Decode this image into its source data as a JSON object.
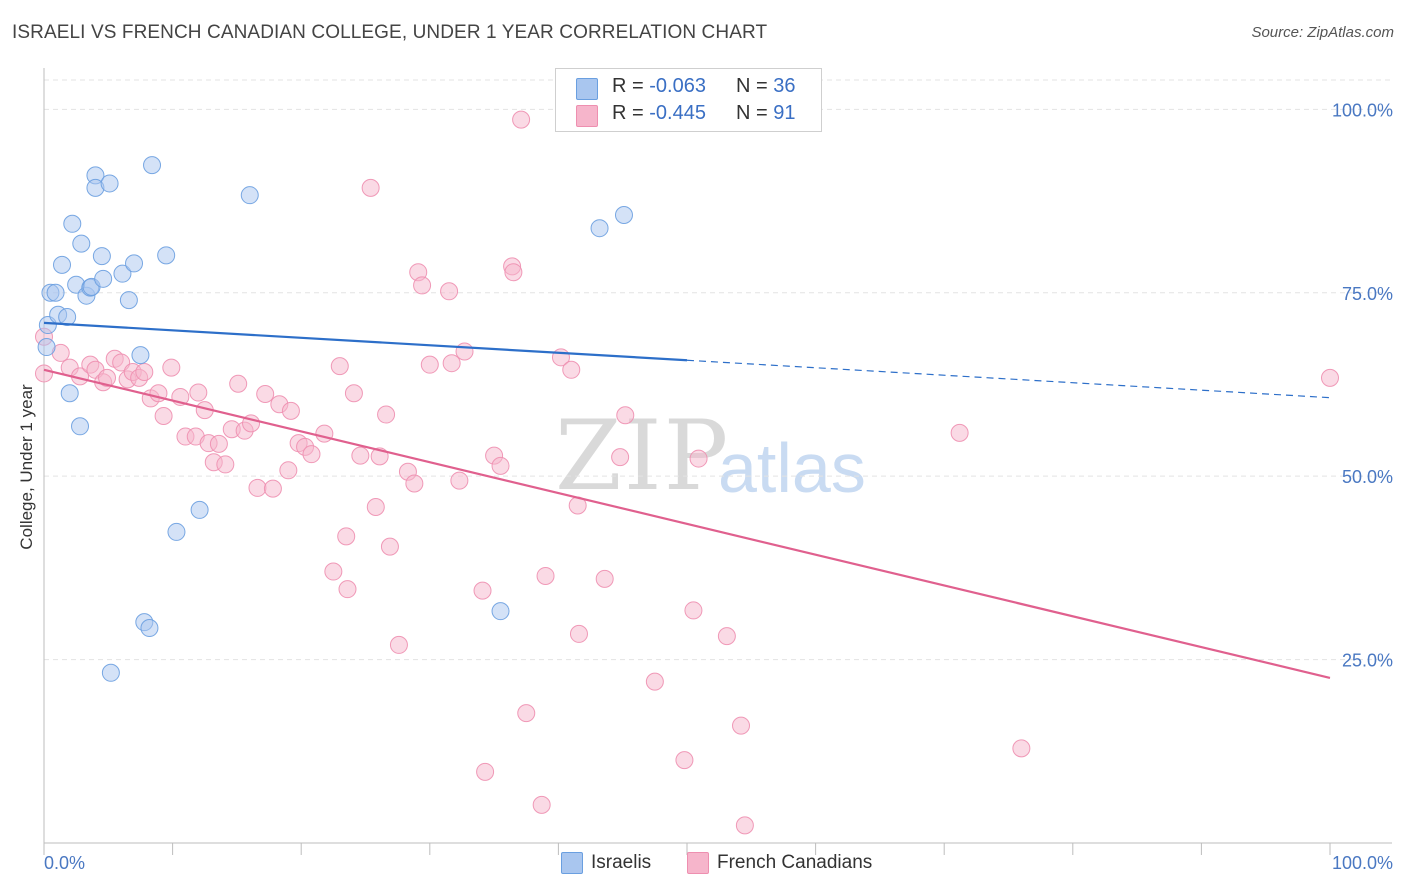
{
  "title": "ISRAELI VS FRENCH CANADIAN COLLEGE, UNDER 1 YEAR CORRELATION CHART",
  "source": "Source: ZipAtlas.com",
  "watermark": {
    "zip": "ZIP",
    "atlas": "atlas"
  },
  "legend": {
    "r_label": "R =",
    "n_label": "N =",
    "rows": [
      {
        "r": "-0.063",
        "n": "36",
        "color": "#a9c6ef"
      },
      {
        "r": "-0.445",
        "n": "91",
        "color": "#f6b5cb"
      }
    ]
  },
  "bottom_legend": {
    "israelis": "Israelis",
    "french_canadians": "French Canadians"
  },
  "chart_data": {
    "type": "scatter",
    "title": "ISRAELI VS FRENCH CANADIAN COLLEGE, UNDER 1 YEAR CORRELATION CHART",
    "xlabel": "",
    "ylabel": "College, Under 1 year",
    "xlim": [
      0,
      100
    ],
    "ylim": [
      0,
      104
    ],
    "x_tick_labels": [
      "0.0%",
      "100.0%"
    ],
    "y_ticks": [
      25,
      50,
      75,
      100
    ],
    "y_tick_labels": [
      "25.0%",
      "50.0%",
      "75.0%",
      "100.0%"
    ],
    "grid": true,
    "series": [
      {
        "name": "Israelis",
        "color": "#6a9fe0",
        "fill": "#a9c6ef",
        "trend": {
          "x0": 0,
          "y0": 70.9,
          "x1": 50,
          "y1": 65.8,
          "dash_to_x": 100,
          "dash_to_y": 60.7,
          "color": "#2d6fc9"
        },
        "points": [
          [
            0.2,
            67.6
          ],
          [
            0.3,
            70.6
          ],
          [
            0.5,
            75.0
          ],
          [
            0.9,
            75.0
          ],
          [
            1.1,
            72.0
          ],
          [
            1.4,
            78.8
          ],
          [
            1.8,
            71.7
          ],
          [
            2.0,
            61.3
          ],
          [
            2.2,
            84.4
          ],
          [
            2.5,
            76.1
          ],
          [
            2.8,
            56.8
          ],
          [
            2.9,
            81.7
          ],
          [
            3.3,
            74.6
          ],
          [
            3.6,
            75.7
          ],
          [
            3.7,
            75.8
          ],
          [
            4.0,
            91.0
          ],
          [
            4.0,
            89.3
          ],
          [
            4.5,
            80.0
          ],
          [
            4.6,
            76.9
          ],
          [
            5.1,
            89.9
          ],
          [
            5.2,
            23.2
          ],
          [
            6.1,
            77.6
          ],
          [
            6.6,
            74.0
          ],
          [
            7.0,
            79.0
          ],
          [
            7.5,
            66.5
          ],
          [
            7.8,
            30.1
          ],
          [
            8.2,
            29.3
          ],
          [
            8.4,
            92.4
          ],
          [
            9.5,
            80.1
          ],
          [
            10.3,
            42.4
          ],
          [
            12.1,
            45.4
          ],
          [
            16.0,
            88.3
          ],
          [
            35.5,
            31.6
          ],
          [
            43.2,
            83.8
          ],
          [
            45.1,
            85.6
          ]
        ]
      },
      {
        "name": "French Canadians",
        "color": "#ee8fb0",
        "fill": "#f6b5cb",
        "trend": {
          "x0": 0,
          "y0": 64.5,
          "x1": 100,
          "y1": 22.5,
          "color": "#e0608e"
        },
        "points": [
          [
            0.0,
            69.0
          ],
          [
            0.0,
            64.0
          ],
          [
            1.3,
            66.8
          ],
          [
            2.0,
            64.8
          ],
          [
            2.8,
            63.6
          ],
          [
            3.6,
            65.2
          ],
          [
            4.0,
            64.5
          ],
          [
            4.6,
            62.8
          ],
          [
            4.9,
            63.4
          ],
          [
            5.5,
            66.0
          ],
          [
            6.0,
            65.5
          ],
          [
            6.5,
            63.2
          ],
          [
            6.9,
            64.2
          ],
          [
            7.4,
            63.4
          ],
          [
            7.8,
            64.2
          ],
          [
            8.3,
            60.6
          ],
          [
            8.9,
            61.3
          ],
          [
            9.3,
            58.2
          ],
          [
            9.9,
            64.8
          ],
          [
            10.6,
            60.8
          ],
          [
            11.0,
            55.4
          ],
          [
            11.8,
            55.4
          ],
          [
            12.0,
            61.4
          ],
          [
            12.5,
            59.0
          ],
          [
            12.8,
            54.5
          ],
          [
            13.2,
            51.9
          ],
          [
            13.6,
            54.4
          ],
          [
            14.1,
            51.6
          ],
          [
            14.6,
            56.4
          ],
          [
            15.1,
            62.6
          ],
          [
            15.6,
            56.2
          ],
          [
            16.1,
            57.2
          ],
          [
            16.6,
            48.4
          ],
          [
            17.2,
            61.2
          ],
          [
            17.8,
            48.3
          ],
          [
            18.3,
            59.8
          ],
          [
            19.0,
            50.8
          ],
          [
            19.2,
            58.9
          ],
          [
            19.8,
            54.5
          ],
          [
            20.3,
            54.0
          ],
          [
            20.8,
            53.0
          ],
          [
            21.8,
            55.8
          ],
          [
            22.5,
            37.0
          ],
          [
            23.0,
            65.0
          ],
          [
            23.5,
            41.8
          ],
          [
            23.6,
            34.6
          ],
          [
            24.1,
            61.3
          ],
          [
            24.6,
            52.8
          ],
          [
            25.4,
            89.3
          ],
          [
            25.8,
            45.8
          ],
          [
            26.1,
            52.7
          ],
          [
            26.6,
            58.4
          ],
          [
            26.9,
            40.4
          ],
          [
            27.6,
            27.0
          ],
          [
            28.3,
            50.6
          ],
          [
            28.8,
            49.0
          ],
          [
            29.1,
            77.8
          ],
          [
            29.4,
            76.0
          ],
          [
            30.0,
            65.2
          ],
          [
            31.5,
            75.2
          ],
          [
            31.7,
            65.4
          ],
          [
            32.3,
            49.4
          ],
          [
            32.7,
            67.0
          ],
          [
            34.1,
            34.4
          ],
          [
            34.3,
            9.7
          ],
          [
            35.0,
            52.8
          ],
          [
            35.5,
            51.4
          ],
          [
            36.4,
            78.6
          ],
          [
            36.5,
            77.8
          ],
          [
            37.1,
            98.6
          ],
          [
            37.5,
            17.7
          ],
          [
            38.7,
            5.2
          ],
          [
            39.0,
            36.4
          ],
          [
            40.2,
            66.2
          ],
          [
            41.0,
            64.5
          ],
          [
            41.5,
            46.0
          ],
          [
            41.6,
            28.5
          ],
          [
            43.6,
            36.0
          ],
          [
            44.8,
            52.6
          ],
          [
            45.2,
            58.3
          ],
          [
            47.5,
            22.0
          ],
          [
            49.8,
            11.3
          ],
          [
            50.5,
            31.7
          ],
          [
            50.9,
            52.4
          ],
          [
            53.1,
            28.2
          ],
          [
            54.2,
            16.0
          ],
          [
            54.5,
            2.4
          ],
          [
            71.2,
            55.9
          ],
          [
            76.0,
            12.9
          ],
          [
            100.0,
            63.4
          ]
        ]
      }
    ]
  }
}
